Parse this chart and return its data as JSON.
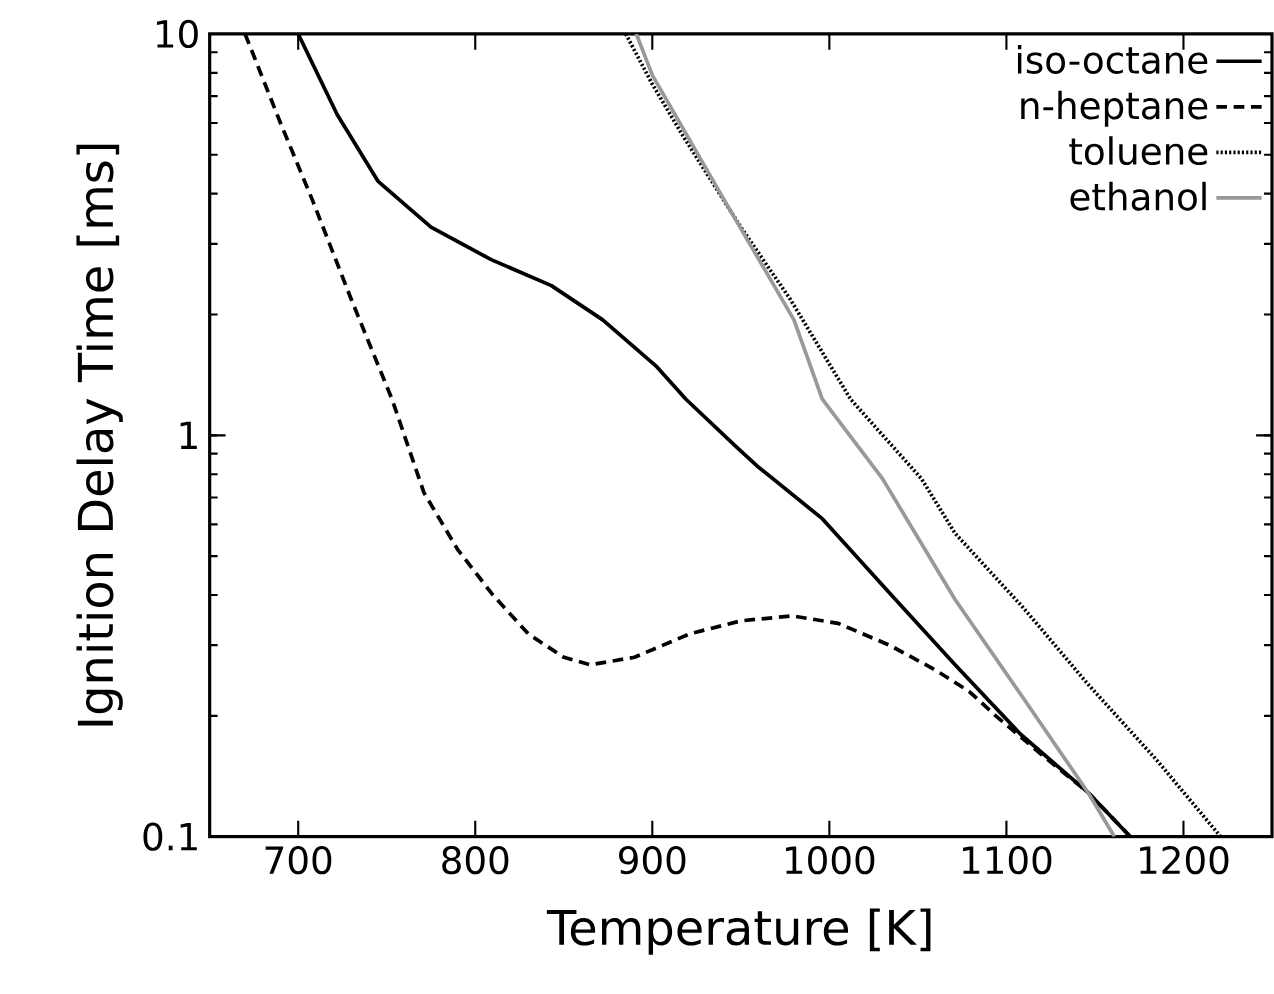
{
  "chart_data": {
    "type": "line",
    "xlabel": "Temperature [K]",
    "ylabel": "Ignition Delay Time [ms]",
    "log": "y",
    "xlim": [
      650,
      1250
    ],
    "xticks": [
      700,
      800,
      900,
      1000,
      1100,
      1200
    ],
    "ylim": [
      0.1,
      10
    ],
    "yticks": [
      0.1,
      1,
      10
    ],
    "legend": "top right",
    "grid": false,
    "series": [
      {
        "name": "iso-octane",
        "color": "#000000",
        "line_style": "solid",
        "x": [
          700,
          722,
          745,
          775,
          809,
          843,
          872,
          902,
          919,
          947,
          959,
          996,
          1034,
          1071,
          1108,
          1146,
          1170
        ],
        "values": [
          10,
          6.3,
          4.3,
          3.3,
          2.74,
          2.36,
          1.94,
          1.49,
          1.23,
          0.94,
          0.84,
          0.62,
          0.405,
          0.268,
          0.18,
          0.129,
          0.1
        ]
      },
      {
        "name": "n-heptane",
        "color": "#000000",
        "line_style": "dashed",
        "x": [
          670,
          690,
          708,
          730,
          753,
          771,
          790,
          810,
          830,
          850,
          865,
          890,
          921,
          950,
          979,
          1005,
          1034,
          1060,
          1079,
          1094,
          1120,
          1146,
          1170
        ],
        "values": [
          10,
          6.0,
          3.86,
          2.18,
          1.23,
          0.72,
          0.52,
          0.4,
          0.32,
          0.28,
          0.268,
          0.28,
          0.32,
          0.345,
          0.355,
          0.34,
          0.3,
          0.26,
          0.23,
          0.2,
          0.16,
          0.129,
          0.1
        ]
      },
      {
        "name": "toluene",
        "color": "#000000",
        "line_style": "dotted",
        "x": [
          885,
          900,
          917,
          950,
          978,
          1012,
          1052,
          1071,
          1110,
          1146,
          1185,
          1221
        ],
        "values": [
          10,
          7.5,
          5.6,
          3.3,
          2.18,
          1.23,
          0.78,
          0.57,
          0.37,
          0.24,
          0.155,
          0.1
        ]
      },
      {
        "name": "ethanol",
        "color": "#999999",
        "line_style": "solid",
        "x": [
          891,
          900,
          940,
          980,
          996,
          1030,
          1071,
          1110,
          1146,
          1161
        ],
        "values": [
          10,
          7.9,
          3.9,
          1.94,
          1.23,
          0.78,
          0.39,
          0.22,
          0.129,
          0.1
        ]
      }
    ]
  }
}
